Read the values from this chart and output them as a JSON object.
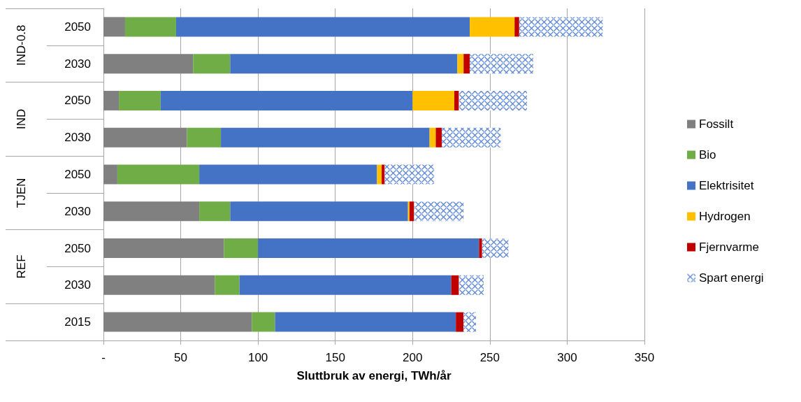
{
  "chart_data": {
    "type": "bar",
    "orientation": "horizontal",
    "stacked": true,
    "xlabel": "Sluttbruk av energi, TWh/år",
    "categories": [
      "2050",
      "2030",
      "2050",
      "2030",
      "2050",
      "2030",
      "2050",
      "2030",
      "2015"
    ],
    "annotations": [
      "IND-0.8",
      "IND",
      "TJEN",
      "REF"
    ],
    "series": [
      {
        "name": "Fossilt",
        "color": "#808080",
        "values": [
          14,
          58,
          10,
          54,
          9,
          62,
          78,
          72,
          96
        ]
      },
      {
        "name": "Bio",
        "color": "#70ad47",
        "values": [
          33,
          24,
          27,
          22,
          53,
          20,
          22,
          16,
          15
        ]
      },
      {
        "name": "Elektrisitet",
        "color": "#4472c4",
        "values": [
          190,
          147,
          163,
          135,
          115,
          115,
          143,
          137,
          117
        ]
      },
      {
        "name": "Hydrogen",
        "color": "#ffc000",
        "values": [
          29,
          4,
          27,
          4,
          3,
          1,
          0,
          0,
          0
        ]
      },
      {
        "name": "Fjernvarme",
        "color": "#c00000",
        "values": [
          3,
          4,
          3,
          4,
          2,
          3,
          2,
          5,
          5
        ]
      },
      {
        "name": "Spart energi",
        "color": "#5b86d1",
        "values": [
          54,
          41,
          44,
          38,
          32,
          32,
          17,
          16,
          8
        ]
      }
    ],
    "xlim": [
      0,
      350
    ],
    "xticks": [
      {
        "value": 0,
        "label": "-"
      },
      50,
      100,
      150,
      200,
      250,
      300,
      350
    ],
    "grid": "x",
    "legend": "right"
  }
}
